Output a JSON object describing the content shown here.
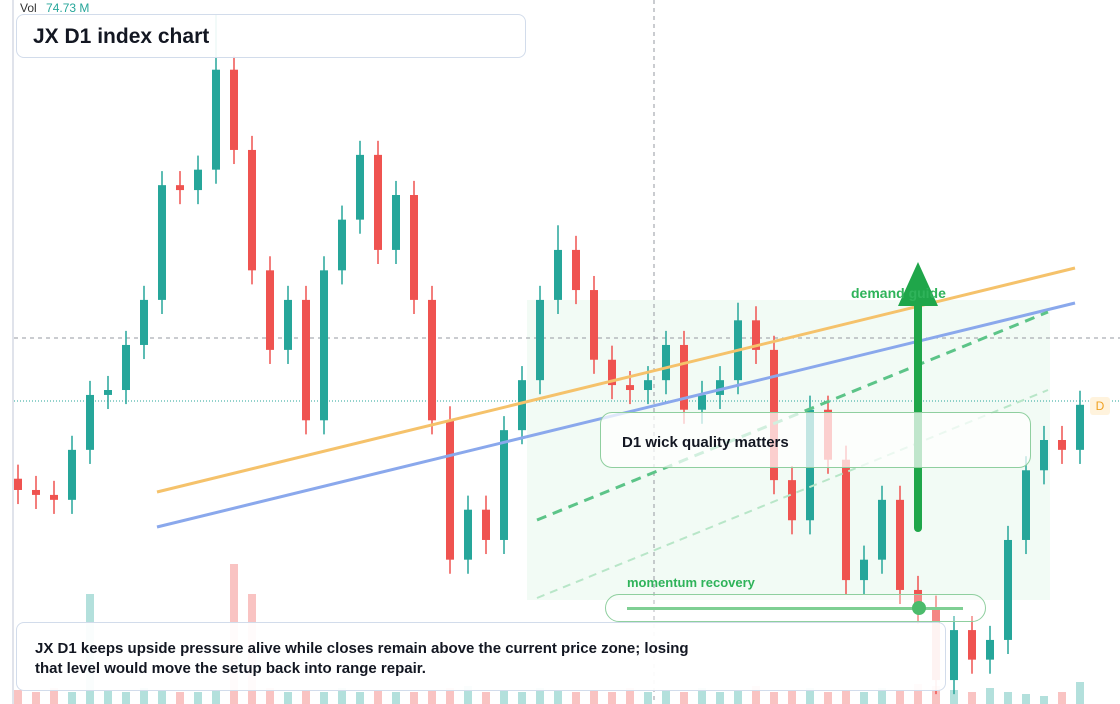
{
  "chart_data": {
    "type": "candlestick",
    "title": "JX D1 index chart",
    "volume_label": "Vol",
    "volume_value_label": "74.73 M",
    "annotations": {
      "demand": "demand guide",
      "wick": "D1 wick quality matters",
      "momentum": "momentum recovery",
      "badge": "D"
    },
    "paragraph": "JX D1 keeps upside pressure alive while closes remain above the current price zone; losing that level would move the setup back into range repair.",
    "up_color": "#26a69a",
    "down_color": "#ef5350",
    "ylim": [
      0,
      100
    ],
    "vol_ylim": [
      0,
      350
    ],
    "open": [
      32.0,
      30.4,
      29.7,
      29.0,
      36.1,
      43.9,
      44.6,
      51.0,
      57.4,
      73.7,
      73.0,
      75.9,
      90.1,
      78.7,
      61.6,
      50.3,
      57.4,
      40.3,
      61.6,
      68.8,
      78.0,
      64.5,
      72.3,
      57.4,
      40.3,
      20.5,
      27.6,
      23.3,
      38.9,
      46.0,
      57.4,
      64.5,
      58.8,
      48.9,
      45.3,
      44.6,
      46.0,
      51.0,
      41.8,
      43.9,
      46.0,
      54.5,
      50.3,
      31.8,
      26.1,
      41.8,
      34.7,
      17.6,
      20.5,
      29.0,
      16.2,
      13.4,
      3.4,
      10.5,
      6.3,
      9.1,
      23.3,
      33.2,
      37.5,
      36.1
    ],
    "high": [
      34.0,
      32.4,
      31.7,
      38.1,
      45.9,
      46.6,
      53.0,
      59.4,
      75.7,
      75.7,
      77.9,
      98.0,
      92.1,
      80.7,
      63.6,
      59.4,
      59.4,
      63.6,
      70.8,
      80.0,
      80.0,
      74.3,
      74.3,
      59.4,
      42.3,
      29.6,
      29.6,
      40.9,
      48.0,
      59.4,
      68.0,
      66.5,
      60.8,
      50.9,
      47.3,
      48.0,
      53.0,
      53.0,
      45.9,
      48.0,
      57.0,
      56.5,
      52.3,
      33.8,
      43.8,
      43.8,
      36.7,
      22.5,
      31.0,
      31.0,
      18.2,
      15.4,
      12.5,
      12.5,
      11.1,
      25.3,
      35.2,
      39.5,
      39.5,
      44.5
    ],
    "low": [
      28.4,
      27.7,
      27.0,
      27.0,
      34.1,
      41.9,
      42.6,
      49.0,
      55.4,
      71.0,
      71.0,
      73.9,
      76.7,
      59.6,
      48.3,
      48.3,
      38.3,
      38.3,
      59.6,
      66.8,
      62.5,
      62.5,
      55.4,
      38.3,
      18.5,
      18.5,
      21.3,
      21.3,
      36.9,
      44.0,
      55.4,
      56.8,
      46.9,
      43.3,
      42.6,
      42.6,
      44.0,
      39.8,
      39.8,
      41.9,
      44.0,
      48.3,
      29.8,
      24.1,
      24.1,
      32.7,
      15.6,
      15.6,
      18.5,
      14.2,
      11.4,
      1.4,
      1.4,
      4.3,
      4.3,
      7.1,
      21.3,
      31.2,
      34.1,
      34.1
    ],
    "close": [
      30.4,
      29.7,
      29.0,
      36.1,
      43.9,
      44.6,
      51.0,
      57.4,
      73.7,
      73.0,
      75.9,
      90.1,
      78.7,
      61.6,
      50.3,
      57.4,
      40.3,
      61.6,
      68.8,
      78.0,
      64.5,
      72.3,
      57.4,
      40.3,
      20.5,
      27.6,
      23.3,
      38.9,
      46.0,
      57.4,
      64.5,
      58.8,
      48.9,
      45.3,
      44.6,
      46.0,
      51.0,
      41.8,
      43.9,
      46.0,
      54.5,
      50.3,
      31.8,
      26.1,
      41.8,
      34.7,
      17.6,
      20.5,
      29.0,
      16.2,
      13.4,
      3.4,
      10.5,
      6.3,
      9.1,
      23.3,
      33.2,
      37.5,
      36.1,
      42.5
    ],
    "volume": [
      14,
      12,
      16,
      12,
      110,
      14,
      12,
      16,
      14,
      12,
      12,
      14,
      140,
      110,
      16,
      12,
      14,
      12,
      16,
      12,
      14,
      12,
      12,
      14,
      16,
      18,
      12,
      14,
      12,
      16,
      14,
      12,
      14,
      12,
      16,
      12,
      14,
      12,
      16,
      12,
      14,
      18,
      12,
      14,
      16,
      12,
      14,
      12,
      16,
      14,
      20,
      18,
      14,
      12,
      16,
      12,
      10,
      8,
      12,
      22
    ]
  }
}
